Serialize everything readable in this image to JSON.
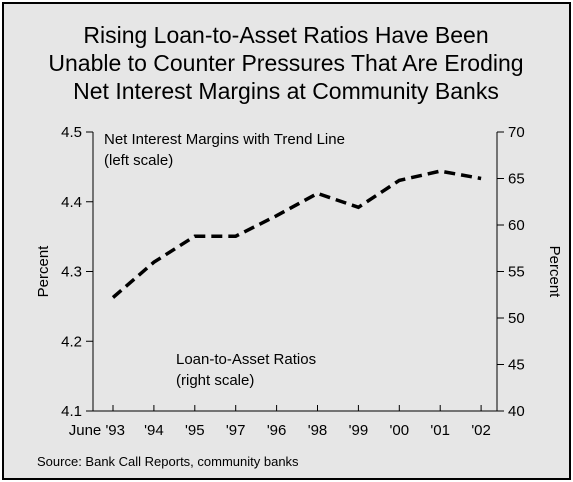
{
  "chart_data": {
    "type": "line",
    "title_lines": [
      "Rising Loan-to-Asset Ratios Have Been",
      "Unable to Counter Pressures That Are Eroding",
      "Net Interest Margins at Community Banks"
    ],
    "categories": [
      "June '93",
      "'94",
      "'95",
      "'97",
      "'96",
      "'98",
      "'99",
      "'00",
      "'01",
      "'02"
    ],
    "left_axis": {
      "label": "Percent",
      "ylim": [
        4.1,
        4.5
      ],
      "ticks": [
        "4.1",
        "4.2",
        "4.3",
        "4.4",
        "4.5"
      ]
    },
    "right_axis": {
      "label": "Percent",
      "ylim": [
        40,
        70
      ],
      "ticks": [
        "40",
        "45",
        "50",
        "55",
        "60",
        "65",
        "70"
      ]
    },
    "series": [
      {
        "name": "Loan-to-Asset Ratios",
        "axis": "right",
        "style": "dashed",
        "values": [
          52.2,
          56.0,
          58.8,
          58.8,
          61.0,
          63.4,
          61.9,
          64.8,
          65.8,
          65.0
        ]
      }
    ],
    "annotations": [
      {
        "text_lines": [
          "Net Interest Margins with Trend Line",
          "(left scale)"
        ]
      },
      {
        "text_lines": [
          "Loan-to-Asset Ratios",
          "(right scale)"
        ]
      }
    ],
    "source": "Source: Bank Call Reports, community banks",
    "grid": false,
    "colors": {
      "background": "#e6e6e6",
      "line": "#000000",
      "frame": "#000000"
    }
  }
}
